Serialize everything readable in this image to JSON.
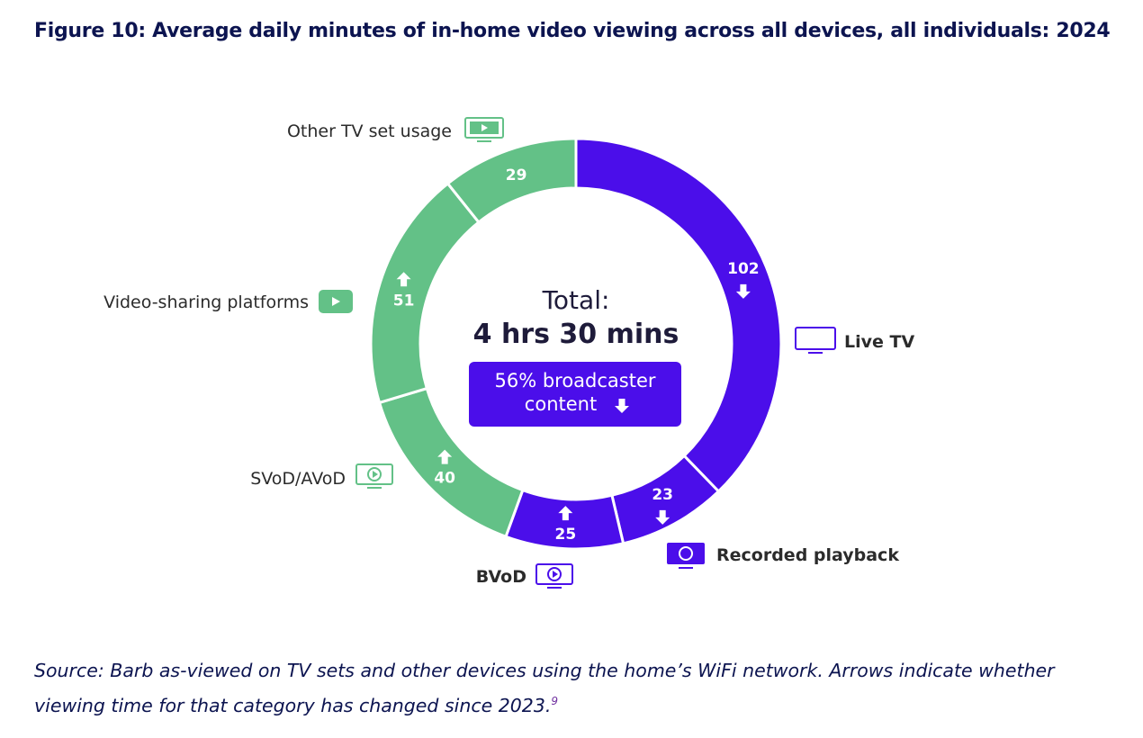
{
  "figure_title": "Figure 10: Average daily minutes of in-home video viewing across all devices, all individuals: 2024",
  "source_note": "Source: Barb as-viewed on TV sets and other devices using the home’s WiFi network. Arrows indicate whether viewing time for that category has changed since 2023.",
  "footnote_ref": "9",
  "colors": {
    "broadcaster": "#4b0eea",
    "other": "#63c187",
    "text": "#2b2b2b",
    "title": "#0c1450"
  },
  "chart_data": {
    "type": "pie",
    "variant": "donut",
    "title": "Figure 10: Average daily minutes of in-home video viewing across all devices, all individuals: 2024",
    "center": {
      "line1": "Total:",
      "line2": "4 hrs 30 mins",
      "badge_line1": "56% broadcaster",
      "badge_line2": "content",
      "badge_arrow": "down"
    },
    "slices": [
      {
        "label": "Live TV",
        "value": 102,
        "arrow": "down",
        "group": "broadcaster",
        "icon": "tv-icon"
      },
      {
        "label": "Recorded playback",
        "value": 23,
        "arrow": "down",
        "group": "broadcaster",
        "icon": "rec-icon"
      },
      {
        "label": "BVoD",
        "value": 25,
        "arrow": "up",
        "group": "broadcaster",
        "icon": "bvod-play-icon"
      },
      {
        "label": "SVoD/AVoD",
        "value": 40,
        "arrow": "up",
        "group": "other",
        "icon": "play-screen-icon"
      },
      {
        "label": "Video-sharing platforms",
        "value": 51,
        "arrow": "up",
        "group": "other",
        "icon": "video-play-icon"
      },
      {
        "label": "Other TV set usage",
        "value": 29,
        "arrow": "none",
        "group": "other",
        "icon": "film-screen-icon"
      }
    ]
  }
}
